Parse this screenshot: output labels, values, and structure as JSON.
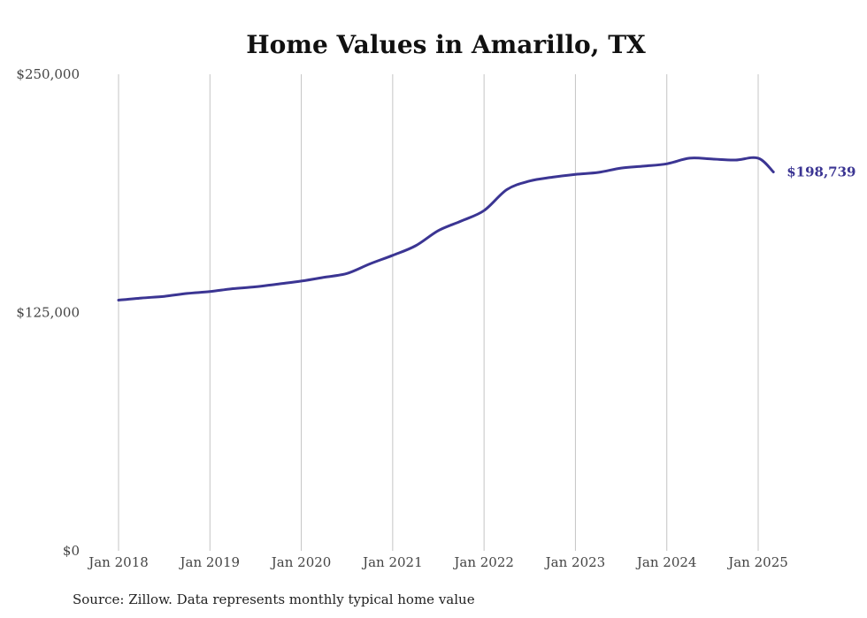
{
  "chart_data": {
    "type": "line",
    "title": "Home Values in Amarillo, TX",
    "xlabel": "",
    "ylabel": "",
    "ylim": [
      0,
      250000
    ],
    "y_ticks": [
      {
        "value": 0,
        "label": "$0"
      },
      {
        "value": 125000,
        "label": "$125,000"
      },
      {
        "value": 250000,
        "label": "$250,000"
      }
    ],
    "x_ticks": [
      {
        "value": "2018-01",
        "label": "Jan 2018"
      },
      {
        "value": "2019-01",
        "label": "Jan 2019"
      },
      {
        "value": "2020-01",
        "label": "Jan 2020"
      },
      {
        "value": "2021-01",
        "label": "Jan 2021"
      },
      {
        "value": "2022-01",
        "label": "Jan 2022"
      },
      {
        "value": "2023-01",
        "label": "Jan 2023"
      },
      {
        "value": "2024-01",
        "label": "Jan 2024"
      },
      {
        "value": "2025-01",
        "label": "Jan 2025"
      }
    ],
    "grid": {
      "vertical": true,
      "horizontal": false
    },
    "series": [
      {
        "color": "#3b3593",
        "end_label": "$198,739",
        "x": [
          "2018-01",
          "2018-04",
          "2018-07",
          "2018-10",
          "2019-01",
          "2019-04",
          "2019-07",
          "2019-10",
          "2020-01",
          "2020-04",
          "2020-07",
          "2020-10",
          "2021-01",
          "2021-04",
          "2021-07",
          "2021-10",
          "2022-01",
          "2022-04",
          "2022-07",
          "2022-10",
          "2023-01",
          "2023-04",
          "2023-07",
          "2023-10",
          "2024-01",
          "2024-04",
          "2024-07",
          "2024-10",
          "2025-01",
          "2025-03"
        ],
        "values": [
          131500,
          132600,
          133500,
          135000,
          136000,
          137500,
          138500,
          140000,
          141500,
          143500,
          145500,
          150500,
          155000,
          160000,
          168000,
          173000,
          178500,
          189500,
          194000,
          196000,
          197500,
          198500,
          200800,
          201800,
          203000,
          206000,
          205500,
          205000,
          206000,
          198739
        ]
      }
    ]
  },
  "source_note": "Source: Zillow. Data represents monthly typical home value"
}
